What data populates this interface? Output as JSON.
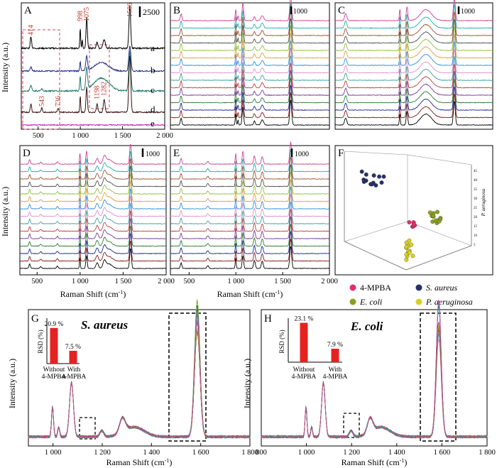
{
  "chart_data": [
    {
      "id": "A",
      "type": "line",
      "panel_label": "A",
      "ylabel": "Intensity (a.u.)",
      "scale_bar": "2500",
      "xlim": [
        300,
        2000
      ],
      "x_ticks": [
        "500",
        "1 000",
        "1 500",
        "2 000"
      ],
      "series": [
        {
          "name": "a",
          "color": "#000000"
        },
        {
          "name": "b",
          "color": "#1c2a8c"
        },
        {
          "name": "c",
          "color": "#1f7a6a"
        },
        {
          "name": "d",
          "color": "#3a1010"
        },
        {
          "name": "e",
          "color": "#c020c0"
        }
      ],
      "peaks": [
        "414",
        "998",
        "1075",
        "1586",
        "543",
        "736",
        "1198",
        "1282"
      ],
      "peak_positions": [
        414,
        998,
        1075,
        1586,
        543,
        736,
        1198,
        1282
      ]
    },
    {
      "id": "B",
      "type": "line",
      "panel_label": "B",
      "scale_bar": "1000",
      "xlim": [
        300,
        2000
      ],
      "n_spectra": 15
    },
    {
      "id": "C",
      "type": "line",
      "panel_label": "C",
      "scale_bar": "1000",
      "xlim": [
        300,
        2000
      ],
      "n_spectra": 15
    },
    {
      "id": "D",
      "type": "line",
      "panel_label": "D",
      "scale_bar": "1000",
      "ylabel": "Intensity (a.u.)",
      "xlabel": "Raman Shift (cm",
      "xlabel_sup": "-1",
      "xlabel_end": ")",
      "xlim": [
        300,
        2000
      ],
      "x_ticks": [
        "500",
        "1 000",
        "1 500",
        "2 000"
      ],
      "n_spectra": 15
    },
    {
      "id": "E",
      "type": "line",
      "panel_label": "E",
      "scale_bar": "1000",
      "xlabel": "Raman Shift (cm",
      "xlabel_sup": "-1",
      "xlabel_end": ")",
      "xlim": [
        300,
        2000
      ],
      "x_ticks": [
        "500",
        "1 000",
        "1 500",
        "2 000"
      ],
      "n_spectra": 15
    },
    {
      "id": "F",
      "type": "scatter",
      "panel_label": "F",
      "axis_label": "P. aeruginosa",
      "z_ticks": [
        "45",
        "40",
        "35",
        "30",
        "25",
        "20",
        "15",
        "10",
        "5"
      ],
      "legend": [
        {
          "label": "4-MPBA",
          "color": "#e0306a"
        },
        {
          "label": "S. aureus",
          "color": "#28306a"
        },
        {
          "label": "E. coli",
          "color": "#8aa020"
        },
        {
          "label": "P. aeruginosa",
          "color": "#d8d020"
        }
      ]
    },
    {
      "id": "G",
      "type": "line",
      "panel_label": "G",
      "title": "S. aureus",
      "ylabel": "Intensity (a.u.)",
      "xlabel": "Raman Shift (cm",
      "xlabel_sup": "-1",
      "xlabel_end": ")",
      "xlim": [
        900,
        1800
      ],
      "x_ticks": [
        "1 000",
        "1 200",
        "1 400",
        "1 600",
        "1 800"
      ],
      "inset": {
        "type": "bar",
        "ylabel": "RSD (%)",
        "categories": [
          "Without 4-MPBA",
          "With 4-MPBA"
        ],
        "cat_line1": [
          "Without",
          "With"
        ],
        "cat_line2": [
          "4-MPBA",
          "4-MPBA"
        ],
        "values": [
          20.9,
          7.5
        ],
        "value_labels": [
          "20.9 %",
          "7.5 %"
        ],
        "ylim": [
          0,
          25
        ]
      }
    },
    {
      "id": "H",
      "type": "line",
      "panel_label": "H",
      "title": "E. coli",
      "ylabel": "Intensity (a.u.)",
      "xlabel": "Raman Shift (cm",
      "xlabel_sup": "-1",
      "xlabel_end": ")",
      "xlim": [
        800,
        1800
      ],
      "x_ticks": [
        "800",
        "1 000",
        "1 200",
        "1 400",
        "1 600",
        "1 800"
      ],
      "inset": {
        "type": "bar",
        "ylabel": "RSD (%)",
        "categories": [
          "Without 4-MPBA",
          "With 4-MPBA"
        ],
        "cat_line1": [
          "Without",
          "With"
        ],
        "cat_line2": [
          "4-MPBA",
          "4-MPBA"
        ],
        "values": [
          23.1,
          7.9
        ],
        "value_labels": [
          "23.1 %",
          "7.9 %"
        ],
        "ylim": [
          0,
          25
        ]
      }
    }
  ],
  "palette": [
    "#000000",
    "#8b1a1a",
    "#1a2a8c",
    "#2e7d32",
    "#7a3a9a",
    "#c04040",
    "#40a0a0",
    "#e090d0",
    "#3090e0",
    "#e0a040",
    "#90c040",
    "#505050",
    "#a0522d",
    "#20b0b0",
    "#d04090"
  ]
}
